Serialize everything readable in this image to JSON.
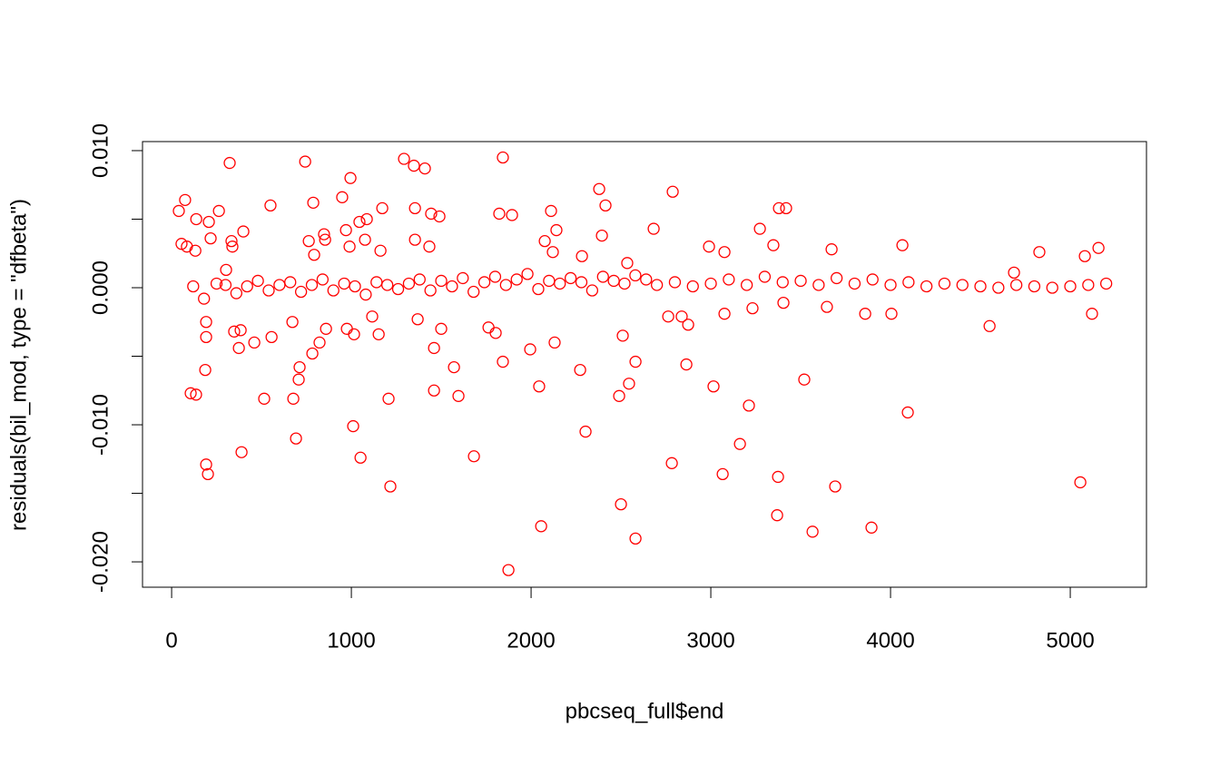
{
  "chart_data": {
    "type": "scatter",
    "x_label": "pbcseq_full$end",
    "y_label": "residuals(bil_mod, type = \"dfbeta\")",
    "color": "#ff0000",
    "xlim": [
      -162,
      5424
    ],
    "ylim": [
      -0.02185,
      0.01066
    ],
    "xticks": [
      0,
      1000,
      2000,
      3000,
      4000,
      5000
    ],
    "yticks": [
      {
        "value": -0.02,
        "label": "-0.020"
      },
      {
        "value": -0.015,
        "label": null
      },
      {
        "value": -0.01,
        "label": "-0.010"
      },
      {
        "value": -0.005,
        "label": null
      },
      {
        "value": 0,
        "label": "0.000"
      },
      {
        "value": 0.005,
        "label": null
      },
      {
        "value": 0.01,
        "label": "0.010"
      }
    ],
    "x": [
      40,
      75,
      55,
      85,
      137,
      132,
      207,
      217,
      263,
      323,
      333,
      338,
      399,
      303,
      550,
      743,
      788,
      763,
      793,
      854,
      848,
      949,
      995,
      970,
      990,
      1045,
      1086,
      1076,
      1172,
      1162,
      1293,
      1348,
      1409,
      1354,
      1354,
      1434,
      1444,
      1490,
      1843,
      1823,
      1894,
      2111,
      2141,
      2379,
      2414,
      2394,
      2076,
      2121,
      2283,
      2535,
      2682,
      2788,
      2990,
      3076,
      3273,
      3348,
      3379,
      3419,
      3672,
      4066,
      4687,
      4828,
      5081,
      5157,
      106,
      136,
      187,
      192,
      192,
      192,
      202,
      374,
      384,
      389,
      348,
      460,
      515,
      556,
      677,
      672,
      692,
      712,
      707,
      783,
      823,
      859,
      975,
      1010,
      1015,
      1051,
      1116,
      1152,
      1207,
      1217,
      1369,
      1460,
      1460,
      1500,
      1571,
      1596,
      1682,
      1763,
      1803,
      1843,
      1874,
      1995,
      2045,
      2056,
      2131,
      2273,
      2303,
      2500,
      2490,
      2510,
      2545,
      2581,
      2581,
      2763,
      2838,
      2864,
      2874,
      2783,
      3015,
      3066,
      3076,
      3162,
      3212,
      3232,
      3374,
      3369,
      3404,
      3520,
      3566,
      3646,
      3692,
      3859,
      3894,
      4005,
      4096,
      4551,
      5056,
      5121,
      120,
      180,
      250,
      300,
      360,
      420,
      480,
      540,
      600,
      660,
      720,
      780,
      840,
      900,
      960,
      1020,
      1080,
      1140,
      1200,
      1260,
      1320,
      1380,
      1440,
      1500,
      1560,
      1620,
      1680,
      1740,
      1800,
      1860,
      1920,
      1980,
      2040,
      2100,
      2160,
      2220,
      2280,
      2340,
      2400,
      2460,
      2520,
      2580,
      2640,
      2700,
      2800,
      2900,
      3000,
      3100,
      3200,
      3300,
      3400,
      3500,
      3600,
      3700,
      3800,
      3900,
      4000,
      4100,
      4200,
      4300,
      4400,
      4500,
      4600,
      4700,
      4800,
      4900,
      5000,
      5100,
      5200
    ],
    "values": [
      0.0056,
      0.0064,
      0.0032,
      0.003,
      0.005,
      0.0027,
      0.0048,
      0.0036,
      0.0056,
      0.0091,
      0.0034,
      0.003,
      0.0041,
      0.0013,
      0.006,
      0.0092,
      0.0062,
      0.0034,
      0.0024,
      0.0035,
      0.0039,
      0.0066,
      0.008,
      0.0042,
      0.003,
      0.0048,
      0.005,
      0.0035,
      0.0058,
      0.0027,
      0.0094,
      0.0089,
      0.0087,
      0.0058,
      0.0035,
      0.003,
      0.0054,
      0.0052,
      0.0095,
      0.0054,
      0.0053,
      0.0056,
      0.0042,
      0.0072,
      0.006,
      0.0038,
      0.0034,
      0.0026,
      0.0023,
      0.0018,
      0.0043,
      0.007,
      0.003,
      0.0026,
      0.0043,
      0.0031,
      0.0058,
      0.0058,
      0.0028,
      0.0031,
      0.0011,
      0.0026,
      0.0023,
      0.0029,
      -0.0077,
      -0.0078,
      -0.006,
      -0.0036,
      -0.0025,
      -0.0129,
      -0.0136,
      -0.0044,
      -0.0031,
      -0.012,
      -0.0032,
      -0.004,
      -0.0081,
      -0.0036,
      -0.0081,
      -0.0025,
      -0.011,
      -0.0058,
      -0.0067,
      -0.0048,
      -0.004,
      -0.003,
      -0.003,
      -0.0101,
      -0.0034,
      -0.0124,
      -0.0021,
      -0.0034,
      -0.0081,
      -0.0145,
      -0.0023,
      -0.0044,
      -0.0075,
      -0.003,
      -0.0058,
      -0.0079,
      -0.0123,
      -0.0029,
      -0.0033,
      -0.0054,
      -0.0206,
      -0.0045,
      -0.0072,
      -0.0174,
      -0.004,
      -0.006,
      -0.0105,
      -0.0158,
      -0.0079,
      -0.0035,
      -0.007,
      -0.0054,
      -0.0183,
      -0.0021,
      -0.0021,
      -0.0056,
      -0.0027,
      -0.0128,
      -0.0072,
      -0.0136,
      -0.0019,
      -0.0114,
      -0.0086,
      -0.0015,
      -0.0138,
      -0.0166,
      -0.0011,
      -0.0067,
      -0.0178,
      -0.0014,
      -0.0145,
      -0.0019,
      -0.0175,
      -0.0019,
      -0.0091,
      -0.0028,
      -0.0142,
      -0.0019,
      0.0001,
      -0.0008,
      0.0003,
      0.0002,
      -0.0004,
      0.0001,
      0.0005,
      -0.0002,
      0.0002,
      0.0004,
      -0.0003,
      0.0002,
      0.0006,
      -0.0002,
      0.0003,
      0.0001,
      -0.0005,
      0.0004,
      0.0002,
      -0.0001,
      0.0003,
      0.0006,
      -0.0002,
      0.0005,
      0.0001,
      0.0007,
      -0.0003,
      0.0004,
      0.0008,
      0.0002,
      0.0006,
      0.001,
      -0.0001,
      0.0005,
      0.0003,
      0.0007,
      0.0004,
      -0.0002,
      0.0008,
      0.0005,
      0.0003,
      0.0009,
      0.0006,
      0.0002,
      0.0004,
      0.0001,
      0.0003,
      0.0006,
      0.0002,
      0.0008,
      0.0004,
      0.0005,
      0.0002,
      0.0007,
      0.0003,
      0.0006,
      0.0002,
      0.0004,
      0.0001,
      0.0003,
      0.0002,
      0.0001,
      0,
      0.0002,
      0.0001,
      0,
      0.0001,
      0.0002,
      0.0003
    ]
  }
}
